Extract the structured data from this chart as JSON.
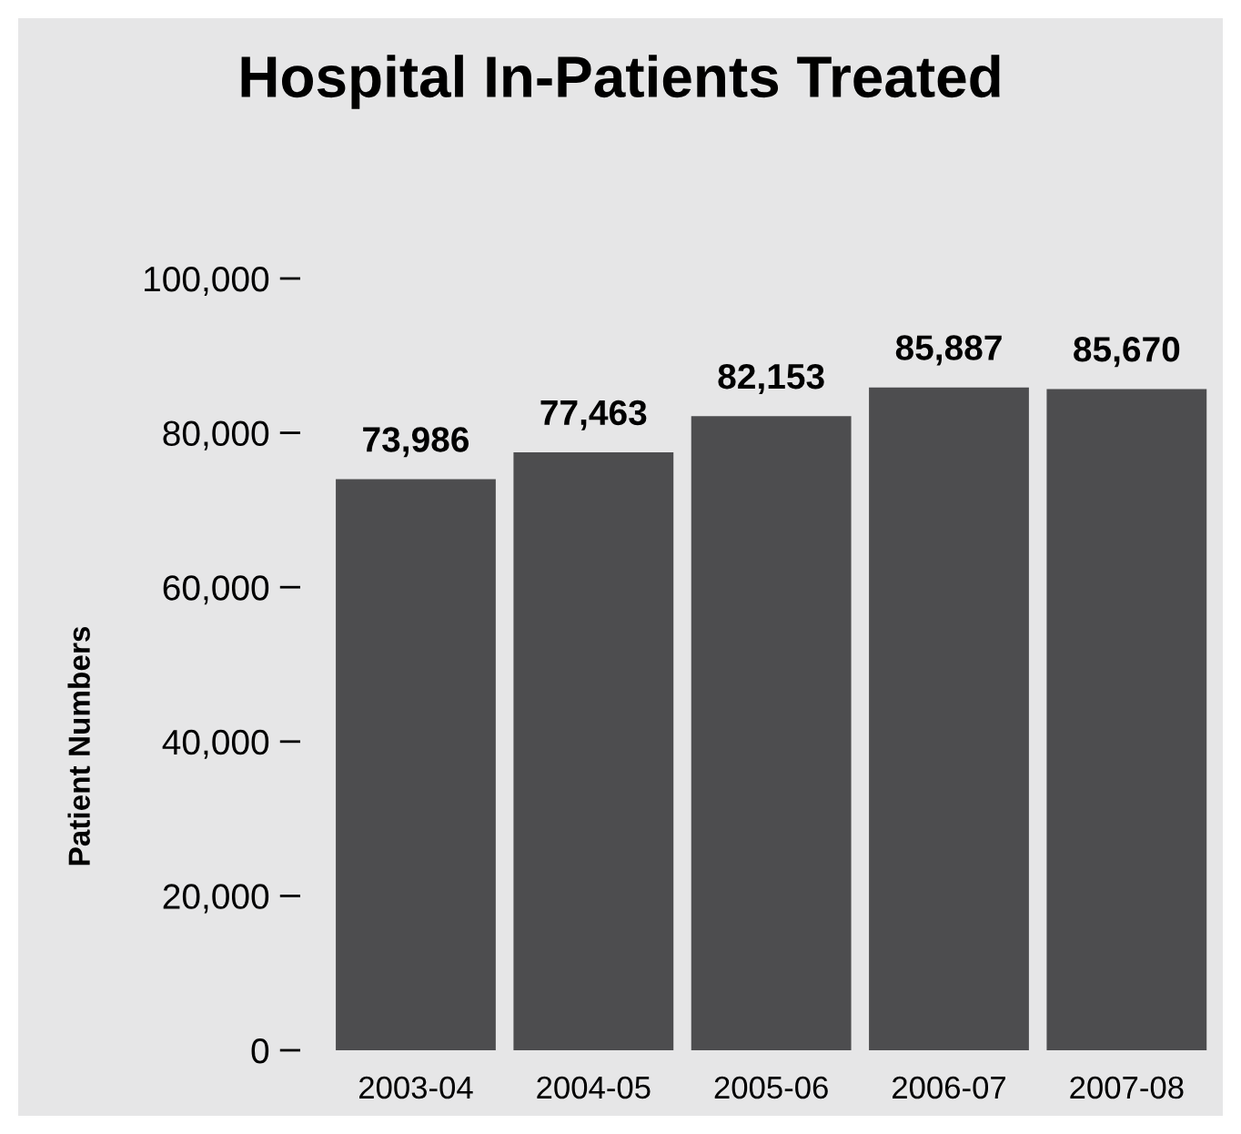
{
  "chart_data": {
    "type": "bar",
    "title": "Hospital In-Patients Treated",
    "ylabel": "Patient Numbers",
    "categories": [
      "2003-04",
      "2004-05",
      "2005-06",
      "2006-07",
      "2007-08"
    ],
    "values": [
      73986,
      77463,
      82153,
      85887,
      85670
    ],
    "color": "#4d4d4f",
    "value_labels": [
      "73,986",
      "77,463",
      "82,153",
      "85,887",
      "85,670"
    ],
    "ylim": [
      0,
      100000
    ],
    "yticks": [
      {
        "value": 0,
        "label": "0"
      },
      {
        "value": 20000,
        "label": "20,000"
      },
      {
        "value": 40000,
        "label": "40,000"
      },
      {
        "value": 60000,
        "label": "60,000"
      },
      {
        "value": 80000,
        "label": "80,000"
      },
      {
        "value": 100000,
        "label": "100,000"
      }
    ],
    "grid": false,
    "legend": false
  }
}
